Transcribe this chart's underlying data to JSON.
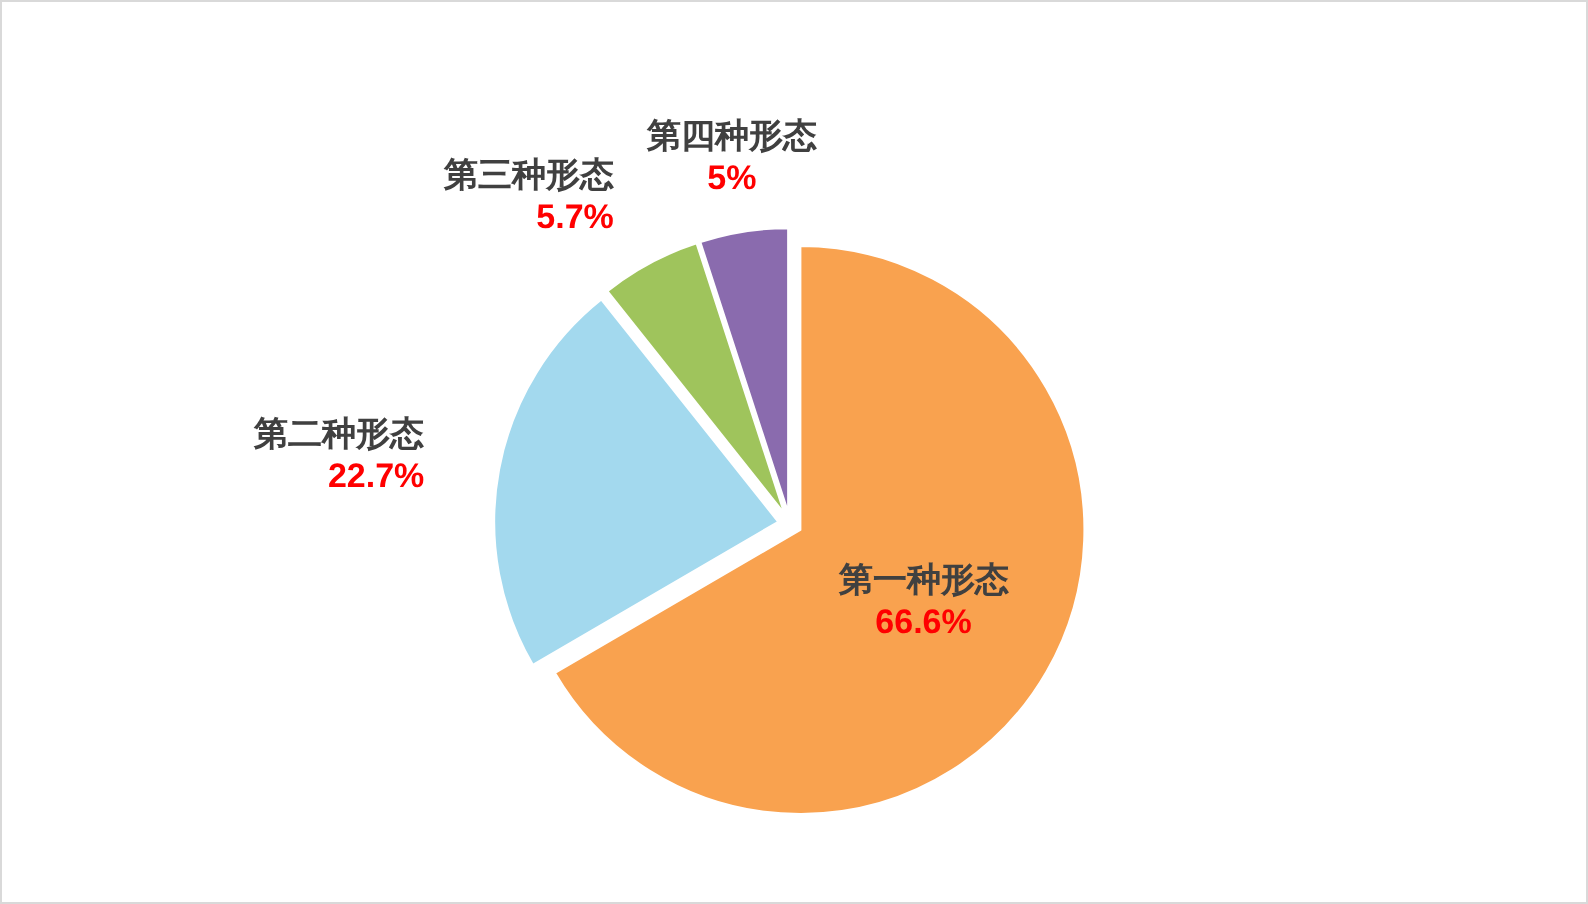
{
  "chart_data": {
    "type": "pie",
    "categories": [
      "第一种形态",
      "第二种形态",
      "第三种形态",
      "第四种形态"
    ],
    "values": [
      66.6,
      22.7,
      5.7,
      5
    ],
    "colors": [
      "#f9a24f",
      "#a3d9ee",
      "#9fc45c",
      "#8a6bae"
    ],
    "value_labels": [
      "66.6%",
      "22.7%",
      "5.7%",
      "5%"
    ]
  }
}
